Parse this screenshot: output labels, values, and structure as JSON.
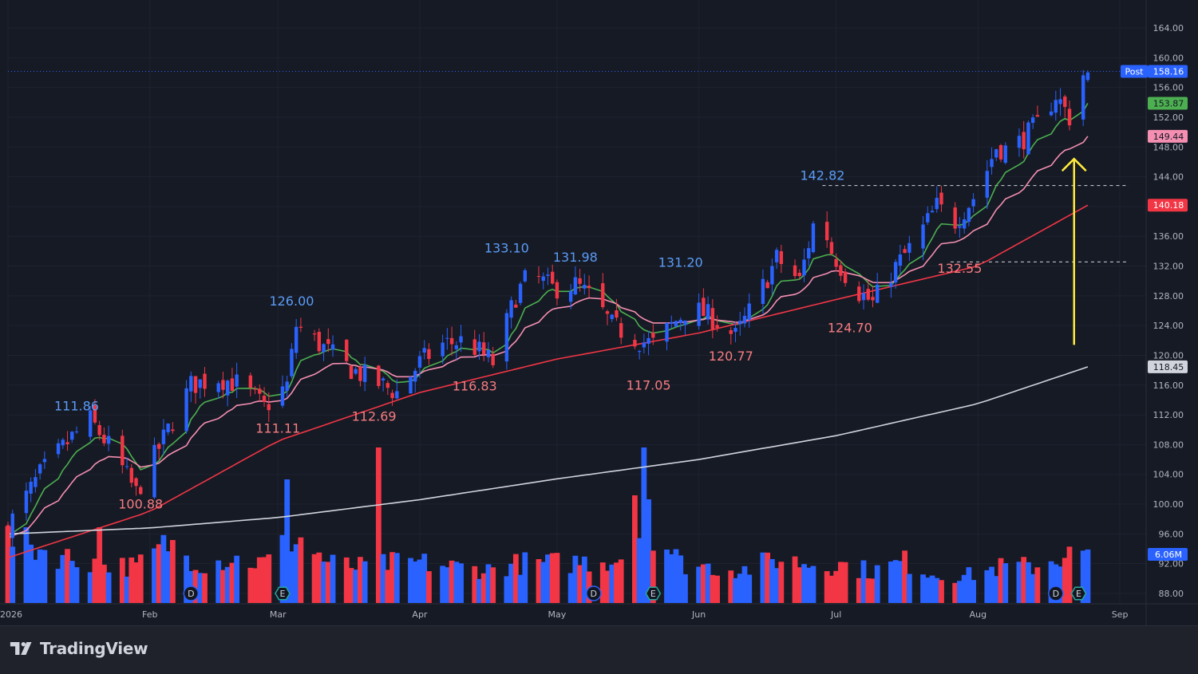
{
  "app": {
    "brand": "TradingView"
  },
  "colors": {
    "background": "#161a25",
    "up": "#2962ff",
    "down": "#f23645",
    "ema_fast": "#4caf50",
    "ema_mid": "#f48fb1",
    "ma_50": "#f23645",
    "ma_200": "#d1d4dc",
    "arrow": "#ffeb3b",
    "ann_high": "#5b9cf6",
    "ann_low": "#f77c80"
  },
  "chart_data": {
    "type": "candlestick",
    "title": "",
    "y_axis": {
      "ylim": [
        85,
        168
      ],
      "ticks": [
        "88.00",
        "92.00",
        "96.00",
        "100.00",
        "104.00",
        "108.00",
        "112.00",
        "116.00",
        "120.00",
        "124.00",
        "128.00",
        "132.00",
        "136.00",
        "140.00",
        "144.00",
        "148.00",
        "152.00",
        "156.00",
        "160.00",
        "164.00",
        "168.00"
      ]
    },
    "x_axis": {
      "range": [
        "2026-01-01",
        "2026-09-05"
      ],
      "ticks": [
        {
          "date": "2026-01-01",
          "label": "2026"
        },
        {
          "date": "2026-02-01",
          "label": "Feb"
        },
        {
          "date": "2026-03-01",
          "label": "Mar"
        },
        {
          "date": "2026-04-01",
          "label": "Apr"
        },
        {
          "date": "2026-05-01",
          "label": "May"
        },
        {
          "date": "2026-06-01",
          "label": "Jun"
        },
        {
          "date": "2026-07-01",
          "label": "Jul"
        },
        {
          "date": "2026-08-01",
          "label": "Aug"
        },
        {
          "date": "2026-09-01",
          "label": "Sep"
        }
      ]
    },
    "price_anchors": [
      [
        "2026-01-01",
        97
      ],
      [
        "2026-01-08",
        104
      ],
      [
        "2026-01-15",
        109
      ],
      [
        "2026-01-19",
        111.3
      ],
      [
        "2026-01-24",
        107
      ],
      [
        "2026-01-29",
        101.5
      ],
      [
        "2026-02-05",
        110
      ],
      [
        "2026-02-10",
        116
      ],
      [
        "2026-02-16",
        117
      ],
      [
        "2026-02-21",
        116
      ],
      [
        "2026-02-26",
        113
      ],
      [
        "2026-03-03",
        116
      ],
      [
        "2026-03-05",
        124
      ],
      [
        "2026-03-09",
        122
      ],
      [
        "2026-03-16",
        118.5
      ],
      [
        "2026-03-22",
        116.5
      ],
      [
        "2026-03-27",
        115
      ],
      [
        "2026-04-01",
        119
      ],
      [
        "2026-04-06",
        121.5
      ],
      [
        "2026-04-11",
        122
      ],
      [
        "2026-04-17",
        119
      ],
      [
        "2026-04-22",
        128
      ],
      [
        "2026-04-25",
        131
      ],
      [
        "2026-04-30",
        129
      ],
      [
        "2026-05-05",
        129.5
      ],
      [
        "2026-05-09",
        127.5
      ],
      [
        "2026-05-13",
        124
      ],
      [
        "2026-05-19",
        122
      ],
      [
        "2026-05-22",
        121.5
      ],
      [
        "2026-05-26",
        124
      ],
      [
        "2026-05-30",
        126.5
      ],
      [
        "2026-06-04",
        125
      ],
      [
        "2026-06-09",
        122.5
      ],
      [
        "2026-06-14",
        128
      ],
      [
        "2026-06-18",
        133
      ],
      [
        "2026-06-23",
        130
      ],
      [
        "2026-06-27",
        140
      ],
      [
        "2026-06-30",
        134
      ],
      [
        "2026-07-05",
        129
      ],
      [
        "2026-07-09",
        127
      ],
      [
        "2026-07-13",
        131
      ],
      [
        "2026-07-19",
        136
      ],
      [
        "2026-07-23",
        140
      ],
      [
        "2026-07-27",
        138
      ],
      [
        "2026-08-01",
        142
      ],
      [
        "2026-08-05",
        148
      ],
      [
        "2026-08-08",
        147.5
      ],
      [
        "2026-08-14",
        151
      ],
      [
        "2026-08-18",
        155
      ],
      [
        "2026-08-21",
        152
      ],
      [
        "2026-08-22",
        149
      ],
      [
        "2026-08-23",
        158
      ],
      [
        "2026-08-25",
        157.5
      ]
    ],
    "volume_anchors": [
      [
        "2026-01-01",
        8
      ],
      [
        "2026-01-08",
        6.8
      ],
      [
        "2026-01-15",
        5.5
      ],
      [
        "2026-01-22",
        5
      ],
      [
        "2026-01-29",
        4.5
      ],
      [
        "2026-02-05",
        7.5
      ],
      [
        "2026-02-12",
        5
      ],
      [
        "2026-02-19",
        5.5
      ],
      [
        "2026-02-26",
        5
      ],
      [
        "2026-03-05",
        8.5
      ],
      [
        "2026-03-12",
        5
      ],
      [
        "2026-03-19",
        4.5
      ],
      [
        "2026-03-26",
        5
      ],
      [
        "2026-04-02",
        5
      ],
      [
        "2026-04-09",
        4.5
      ],
      [
        "2026-04-16",
        4.2
      ],
      [
        "2026-04-23",
        5
      ],
      [
        "2026-04-30",
        5
      ],
      [
        "2026-05-07",
        5.2
      ],
      [
        "2026-05-14",
        5.5
      ],
      [
        "2026-05-21",
        10
      ],
      [
        "2026-05-28",
        5
      ],
      [
        "2026-06-04",
        4.5
      ],
      [
        "2026-06-11",
        4.2
      ],
      [
        "2026-06-18",
        5.5
      ],
      [
        "2026-06-25",
        5
      ],
      [
        "2026-07-02",
        4.8
      ],
      [
        "2026-07-09",
        4
      ],
      [
        "2026-07-16",
        5.2
      ],
      [
        "2026-07-23",
        3.5
      ],
      [
        "2026-07-30",
        3.5
      ],
      [
        "2026-08-06",
        4.5
      ],
      [
        "2026-08-13",
        4.6
      ],
      [
        "2026-08-20",
        6
      ],
      [
        "2026-08-25",
        6.06
      ]
    ],
    "volume_scale_max": 20,
    "volume_spikes": [
      {
        "date": "2026-03-03",
        "value": 15.5
      },
      {
        "date": "2026-03-23",
        "value": 19.5
      },
      {
        "date": "2026-05-20",
        "value": 19.5
      },
      {
        "date": "2026-05-18",
        "value": 13.5
      },
      {
        "date": "2026-05-21",
        "value": 13
      },
      {
        "date": "2026-08-23",
        "value": 12.5
      },
      {
        "date": "2026-02-01",
        "value": 12
      },
      {
        "date": "2026-01-21",
        "value": 9.5
      }
    ],
    "moving_averages": [
      {
        "key": "ema_fast",
        "last": "153.87",
        "bg": "#4caf50",
        "fg": "#131722",
        "smooth": 0.22,
        "offset": 0
      },
      {
        "key": "ema_mid",
        "last": "149.44",
        "bg": "#f48fb1",
        "fg": "#131722",
        "smooth": 0.11,
        "offset": 0
      },
      {
        "key": "ma_50",
        "last": "140.18",
        "bg": "#f23645",
        "fg": "#ffffff",
        "curve": [
          [
            "2026-01-01",
            92.8
          ],
          [
            "2026-02-01",
            99
          ],
          [
            "2026-03-01",
            108.5
          ],
          [
            "2026-04-01",
            115
          ],
          [
            "2026-05-01",
            119.5
          ],
          [
            "2026-06-01",
            123
          ],
          [
            "2026-07-01",
            127.5
          ],
          [
            "2026-08-01",
            132
          ],
          [
            "2026-08-25",
            140.18
          ]
        ]
      },
      {
        "key": "ma_200",
        "last": "118.45",
        "bg": "#d1d4dc",
        "fg": "#131722",
        "curve": [
          [
            "2026-01-01",
            96
          ],
          [
            "2026-02-01",
            96.8
          ],
          [
            "2026-03-01",
            98.2
          ],
          [
            "2026-04-01",
            100.6
          ],
          [
            "2026-05-01",
            103.4
          ],
          [
            "2026-06-01",
            106
          ],
          [
            "2026-07-01",
            109.2
          ],
          [
            "2026-08-01",
            113.5
          ],
          [
            "2026-08-25",
            118.45
          ]
        ]
      }
    ],
    "last_price": {
      "tag": "Post",
      "value": "158.16"
    },
    "volume_label": "6.06M",
    "price_annotations": [
      {
        "text": "111.86",
        "date": "2026-01-16",
        "price": 112.6,
        "kind": "high"
      },
      {
        "text": "100.88",
        "date": "2026-01-30",
        "price": 99.4,
        "kind": "low"
      },
      {
        "text": "126.00",
        "date": "2026-03-04",
        "price": 126.7,
        "kind": "high"
      },
      {
        "text": "111.11",
        "date": "2026-03-01",
        "price": 109.6,
        "kind": "low"
      },
      {
        "text": "112.69",
        "date": "2026-03-22",
        "price": 111.2,
        "kind": "low"
      },
      {
        "text": "133.10",
        "date": "2026-04-20",
        "price": 133.8,
        "kind": "high"
      },
      {
        "text": "116.83",
        "date": "2026-04-13",
        "price": 115.3,
        "kind": "low"
      },
      {
        "text": "131.98",
        "date": "2026-05-05",
        "price": 132.6,
        "kind": "high"
      },
      {
        "text": "117.05",
        "date": "2026-05-21",
        "price": 115.4,
        "kind": "low"
      },
      {
        "text": "131.20",
        "date": "2026-05-28",
        "price": 131.9,
        "kind": "high"
      },
      {
        "text": "120.77",
        "date": "2026-06-08",
        "price": 119.3,
        "kind": "low"
      },
      {
        "text": "142.82",
        "date": "2026-06-28",
        "price": 143.6,
        "kind": "high"
      },
      {
        "text": "124.70",
        "date": "2026-07-04",
        "price": 123.1,
        "kind": "low"
      },
      {
        "text": "132.55",
        "date": "2026-07-28",
        "price": 131.1,
        "kind": "low"
      }
    ],
    "horizontal_levels": [
      {
        "price": 142.82,
        "from": "2026-06-28",
        "to": "2026-09-03"
      },
      {
        "price": 132.55,
        "from": "2026-07-26",
        "to": "2026-09-03"
      }
    ],
    "arrow": {
      "date": "2026-08-22",
      "from_price": 121.4,
      "to_price": 146.4
    },
    "event_markers": [
      {
        "date": "2026-02-10",
        "letter": "D"
      },
      {
        "date": "2026-03-02",
        "letter": "E"
      },
      {
        "date": "2026-05-09",
        "letter": "D"
      },
      {
        "date": "2026-05-22",
        "letter": "E"
      },
      {
        "date": "2026-08-18",
        "letter": "D"
      },
      {
        "date": "2026-08-23",
        "letter": "E"
      }
    ],
    "series_shown": [
      "candles",
      "volume",
      "moving_averages"
    ]
  }
}
